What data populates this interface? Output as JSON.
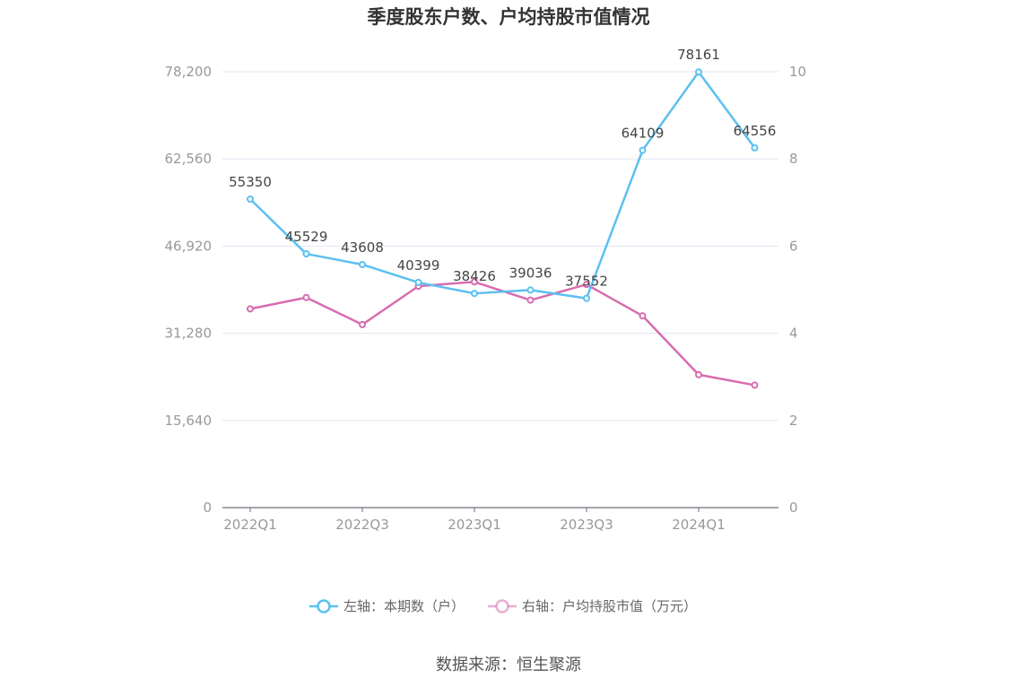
{
  "chart_data": {
    "type": "line",
    "title": "季度股东户数、户均持股市值情况",
    "categories": [
      "2022Q1",
      "2022Q2",
      "2022Q3",
      "2022Q4",
      "2023Q1",
      "2023Q2",
      "2023Q3",
      "2023Q4",
      "2024Q1",
      "2024Q2"
    ],
    "x_tick_labels": [
      "2022Q1",
      "2022Q3",
      "2023Q1",
      "2023Q3",
      "2024Q1"
    ],
    "y_left": {
      "ticks": [
        "0",
        "15,640",
        "31,280",
        "46,920",
        "62,560",
        "78,200"
      ],
      "range": [
        0,
        78200
      ]
    },
    "y_right": {
      "ticks": [
        "0",
        "2",
        "4",
        "6",
        "8",
        "10"
      ],
      "range": [
        0,
        10
      ]
    },
    "series": [
      {
        "name": "左轴：本期数（户）",
        "axis": "left",
        "color": "#5bc0f0",
        "values": [
          55350,
          45529,
          43608,
          40399,
          38426,
          39036,
          37552,
          64109,
          78161,
          64556
        ],
        "labels": [
          "55350",
          "45529",
          "43608",
          "40399",
          "38426",
          "39036",
          "37552",
          "64109",
          "78161",
          "64556"
        ]
      },
      {
        "name": "右轴：户均持股市值（万元）",
        "axis": "right",
        "color": "#d86cb0",
        "values": [
          4.56,
          4.82,
          4.2,
          5.08,
          5.18,
          4.76,
          5.12,
          4.4,
          3.05,
          2.81
        ]
      }
    ],
    "grid": true,
    "legend_position": "bottom"
  },
  "source": "数据来源：恒生聚源"
}
